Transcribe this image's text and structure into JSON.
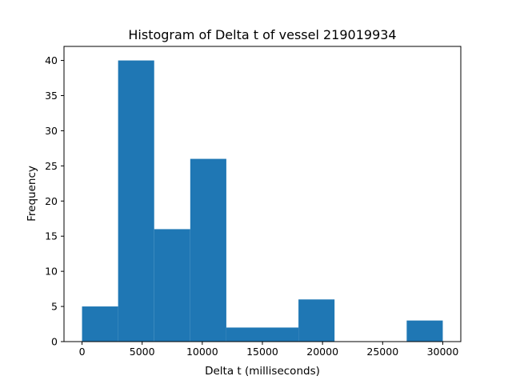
{
  "chart_data": {
    "type": "bar",
    "title": "Histogram of Delta t of vessel 219019934",
    "xlabel": "Delta t (milliseconds)",
    "ylabel": "Frequency",
    "bins": [
      {
        "start": 0,
        "end": 3000,
        "value": 5
      },
      {
        "start": 3000,
        "end": 6000,
        "value": 40
      },
      {
        "start": 6000,
        "end": 9000,
        "value": 16
      },
      {
        "start": 9000,
        "end": 12000,
        "value": 26
      },
      {
        "start": 12000,
        "end": 15000,
        "value": 2
      },
      {
        "start": 15000,
        "end": 18000,
        "value": 2
      },
      {
        "start": 18000,
        "end": 21000,
        "value": 6
      },
      {
        "start": 21000,
        "end": 24000,
        "value": 0
      },
      {
        "start": 24000,
        "end": 27000,
        "value": 0
      },
      {
        "start": 27000,
        "end": 30000,
        "value": 3
      }
    ],
    "xlim": [
      -1500,
      31500
    ],
    "ylim": [
      0,
      42
    ],
    "xticks": [
      0,
      5000,
      10000,
      15000,
      20000,
      25000,
      30000
    ],
    "yticks": [
      0,
      5,
      10,
      15,
      20,
      25,
      30,
      35,
      40
    ],
    "bar_color": "#1f77b4",
    "grid": false,
    "legend": "none"
  }
}
